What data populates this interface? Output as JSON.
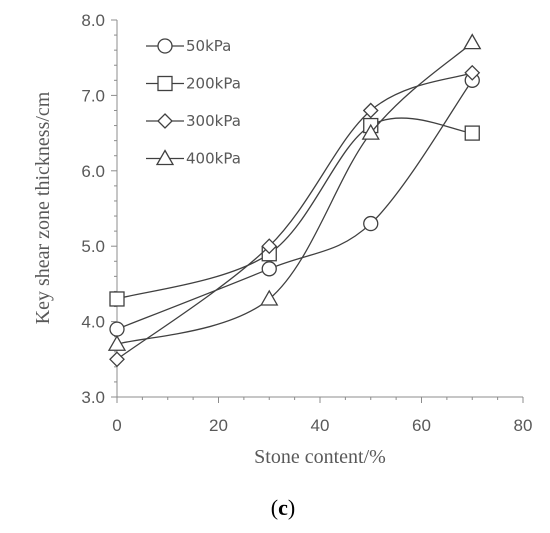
{
  "chart_data": {
    "type": "line",
    "title": "",
    "xlabel": "Stone content/%",
    "ylabel": "Key shear zone thickness/cm",
    "xlim": [
      0,
      80
    ],
    "ylim": [
      3.0,
      8.0
    ],
    "x_ticks": [
      "0",
      "20",
      "40",
      "60",
      "80"
    ],
    "y_ticks": [
      "3.0",
      "4.0",
      "5.0",
      "6.0",
      "7.0",
      "8.0"
    ],
    "x_tick_values": [
      0,
      20,
      40,
      60,
      80
    ],
    "y_tick_values": [
      3.0,
      4.0,
      5.0,
      6.0,
      7.0,
      8.0
    ],
    "grid": false,
    "legend_position": "top-left",
    "smooth": true,
    "x": [
      0,
      30,
      50,
      70
    ],
    "series": [
      {
        "name": "50kPa",
        "marker": "circle",
        "values": [
          3.9,
          4.7,
          5.3,
          7.2
        ]
      },
      {
        "name": "200kPa",
        "marker": "square",
        "values": [
          4.3,
          4.9,
          6.6,
          6.5
        ]
      },
      {
        "name": "300kPa",
        "marker": "diamond",
        "values": [
          3.5,
          5.0,
          6.8,
          7.3
        ]
      },
      {
        "name": "400kPa",
        "marker": "triangle",
        "values": [
          3.7,
          4.3,
          6.5,
          7.7
        ]
      }
    ],
    "line_color": "#404040",
    "axis_color": "#8c8c8c"
  },
  "caption": {
    "open": "(",
    "letter": "c",
    "close": ")"
  }
}
